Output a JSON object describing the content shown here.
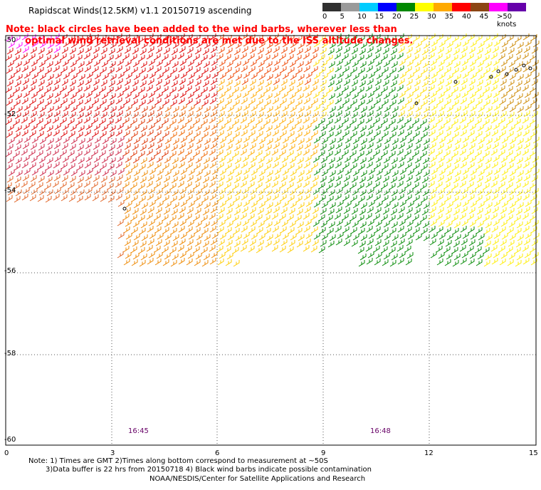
{
  "title": "Rapidscat Winds(12.5KM) v1.1 20150719 ascending",
  "note": "Note: black circles have been added to the wind barbs, wherever less than\n      optimal wind retrieval conditions are met due to the ISS altitude changes.",
  "legend": {
    "labels": [
      "0",
      "5",
      "10",
      "15",
      "20",
      "25",
      "30",
      "35",
      "40",
      "45",
      ">50 knots"
    ],
    "colors": [
      "#303030",
      "#9a9a9a",
      "#00ccff",
      "#0000ff",
      "#008800",
      "#ffff00",
      "#ffaa00",
      "#ff0000",
      "#8b4513",
      "#ff00ff",
      "#6600aa"
    ]
  },
  "axes": {
    "lat_labels": [
      "-50",
      "-52",
      "-54",
      "-56",
      "-58",
      "-60"
    ],
    "lon_labels": [
      "0",
      "3",
      "6",
      "9",
      "12",
      "15"
    ]
  },
  "times": [
    "16:45",
    "16:48"
  ],
  "footer": {
    "line1": "Note: 1) Times are GMT 2)Times along bottom correspond to measurement at ~50S",
    "line2": "3)Data buffer is 22 hrs from 20150718 4) Black wind barbs indicate possible contamination",
    "line3": "NOAA/NESDIS/Center for Satellite Applications and Research"
  }
}
